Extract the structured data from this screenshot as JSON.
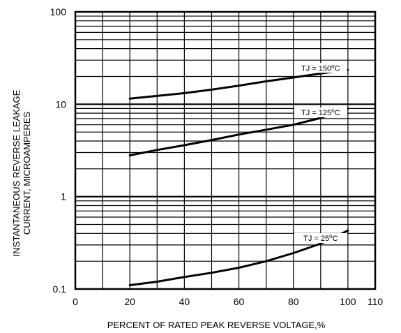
{
  "chart_data": {
    "type": "line",
    "xlabel": "PERCENT OF RATED PEAK REVERSE VOLTAGE,%",
    "ylabel_lines": [
      "INSTANTANEOUS REVERSE LEAKAGE",
      "CURRENT, MICROAMPERES"
    ],
    "xlim": [
      0,
      110
    ],
    "ylim": [
      0.1,
      100
    ],
    "yscale": "log",
    "grid": true,
    "x_ticks": [
      0,
      20,
      40,
      60,
      80,
      100,
      110
    ],
    "x_tick_labels": [
      "0",
      "20",
      "40",
      "60",
      "80",
      "100",
      "110"
    ],
    "y_ticks": [
      0.1,
      1,
      10,
      100
    ],
    "y_tick_labels": [
      "0.1",
      "1",
      "10",
      "100"
    ],
    "series": [
      {
        "name": "TJ = 150°C",
        "label": {
          "base": "TJ = 150",
          "sup": "o",
          "unit": "C"
        },
        "x": [
          20,
          30,
          40,
          50,
          60,
          70,
          80,
          90,
          100
        ],
        "y": [
          11.5,
          12.3,
          13.2,
          14.4,
          15.9,
          17.7,
          19.5,
          21.5,
          23.5
        ]
      },
      {
        "name": "TJ = 125°C",
        "label": {
          "base": "TJ = 125",
          "sup": "o",
          "unit": "C"
        },
        "x": [
          20,
          30,
          40,
          50,
          60,
          70,
          80,
          90,
          100
        ],
        "y": [
          2.8,
          3.2,
          3.6,
          4.1,
          4.7,
          5.3,
          6.0,
          7.1,
          9.0
        ]
      },
      {
        "name": "TJ = 25°C",
        "label": {
          "base": "TJ = 25",
          "sup": "o",
          "unit": "C"
        },
        "x": [
          20,
          30,
          40,
          50,
          60,
          70,
          80,
          90,
          100
        ],
        "y": [
          0.11,
          0.12,
          0.135,
          0.15,
          0.17,
          0.2,
          0.245,
          0.31,
          0.43
        ]
      }
    ]
  }
}
